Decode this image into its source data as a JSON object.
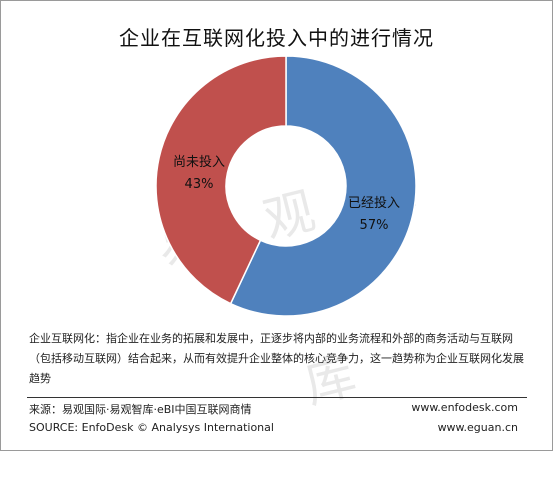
{
  "watermark": "易 观 智 库",
  "chart_data": {
    "type": "pie",
    "title": "企业在互联网化投入中的进行情况",
    "slices": [
      {
        "label": "已经投入",
        "value": 57,
        "value_label": "57%",
        "color": "#4f81bd"
      },
      {
        "label": "尚未投入",
        "value": 43,
        "value_label": "43%",
        "color": "#c0504d"
      }
    ],
    "start_angle_deg": 0,
    "direction": "clockwise",
    "legend": "none"
  },
  "note": {
    "lines": [
      "企业互联网化：指企业在业务的拓展和发展中，正逐步将内部的业务流程和外部的商务活动与互联网",
      "（包括移动互联网）结合起来，从而有效提升企业整体的核心竞争力，这一趋势称为企业互联网化发展",
      "趋势"
    ]
  },
  "footer": {
    "source_cn": "来源：易观国际·易观智库·eBI中国互联网商情",
    "source_en": "SOURCE: EnfoDesk © Analysys International",
    "url1": "www.enfodesk.com",
    "url2": "www.eguan.cn"
  }
}
